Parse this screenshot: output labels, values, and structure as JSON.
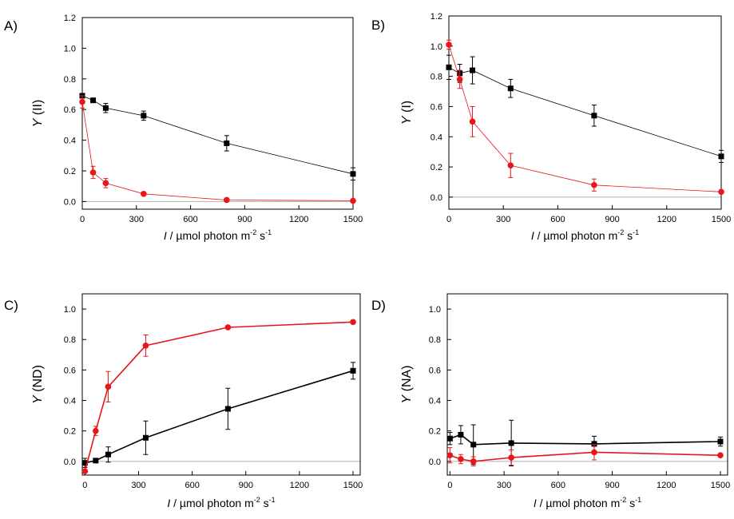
{
  "colors": {
    "black_series": "#000000",
    "red_series": "#e8161b",
    "baseline": "#b0b0b0"
  },
  "chart_data": [
    {
      "type": "line",
      "panel_label": "A)",
      "ylabel_italic": "Y",
      "ylabel_rest": " (II)",
      "xlabel_italic": "I",
      "xlabel_rest": " / µmol photon m",
      "xlabel_sup1": "-2",
      "xlabel_mid": " s",
      "xlabel_sup2": "-1",
      "xlim": [
        0,
        1500
      ],
      "ylim": [
        -0.05,
        1.2
      ],
      "xticks": [
        0,
        300,
        600,
        900,
        1200,
        1500
      ],
      "yticks": [
        0.0,
        0.2,
        0.4,
        0.6,
        0.8,
        1.0,
        1.2
      ],
      "baseline": 0,
      "series": [
        {
          "color": "#000000",
          "marker": "square",
          "line_width": 0.8,
          "x": [
            0,
            60,
            130,
            340,
            800,
            1500
          ],
          "y": [
            0.69,
            0.66,
            0.61,
            0.56,
            0.38,
            0.18
          ],
          "err": [
            0.01,
            0.01,
            0.03,
            0.03,
            0.05,
            0.04
          ]
        },
        {
          "color": "#e8161b",
          "marker": "circle",
          "line_width": 0.8,
          "x": [
            0,
            60,
            130,
            340,
            800,
            1500
          ],
          "y": [
            0.65,
            0.19,
            0.12,
            0.05,
            0.01,
            0.005
          ],
          "err": [
            0.04,
            0.04,
            0.03,
            0.01,
            0.005,
            0.005
          ]
        }
      ]
    },
    {
      "type": "line",
      "panel_label": "B)",
      "ylabel_italic": "Y",
      "ylabel_rest": " (I)",
      "xlabel_italic": "I",
      "xlabel_rest": " / µmol photon m",
      "xlabel_sup1": "-2",
      "xlabel_mid": " s",
      "xlabel_sup2": "-1",
      "xlim": [
        0,
        1500
      ],
      "ylim": [
        -0.08,
        1.2
      ],
      "xticks": [
        0,
        300,
        600,
        900,
        1200,
        1500
      ],
      "yticks": [
        0.0,
        0.2,
        0.4,
        0.6,
        0.8,
        1.0,
        1.2
      ],
      "baseline": 0,
      "series": [
        {
          "color": "#000000",
          "marker": "square",
          "line_width": 0.8,
          "x": [
            0,
            60,
            130,
            340,
            800,
            1500
          ],
          "y": [
            0.86,
            0.82,
            0.84,
            0.72,
            0.54,
            0.27
          ],
          "err": [
            0.08,
            0.06,
            0.09,
            0.06,
            0.07,
            0.04
          ]
        },
        {
          "color": "#e8161b",
          "marker": "circle",
          "line_width": 0.8,
          "x": [
            0,
            60,
            130,
            340,
            800,
            1500
          ],
          "y": [
            1.01,
            0.78,
            0.5,
            0.21,
            0.08,
            0.035
          ],
          "err": [
            0.03,
            0.06,
            0.1,
            0.08,
            0.04,
            0.01
          ]
        }
      ]
    },
    {
      "type": "line",
      "panel_label": "C)",
      "ylabel_italic": "Y",
      "ylabel_rest": " (ND)",
      "xlabel_italic": "I",
      "xlabel_rest": " / µmol photon m",
      "xlabel_sup1": "-2",
      "xlabel_mid": " s",
      "xlabel_sup2": "-1",
      "xlim": [
        -15,
        1540
      ],
      "ylim": [
        -0.09,
        1.1
      ],
      "xticks": [
        0,
        300,
        600,
        900,
        1200,
        1500
      ],
      "yticks": [
        0.0,
        0.2,
        0.4,
        0.6,
        0.8,
        1.0
      ],
      "baseline": 0,
      "series": [
        {
          "color": "#000000",
          "marker": "square",
          "line_width": 1.6,
          "x": [
            0,
            60,
            130,
            340,
            800,
            1500
          ],
          "y": [
            -0.01,
            0.005,
            0.045,
            0.155,
            0.345,
            0.595
          ],
          "err": [
            0.03,
            0.01,
            0.05,
            0.11,
            0.135,
            0.055
          ]
        },
        {
          "color": "#e8161b",
          "marker": "circle",
          "line_width": 1.6,
          "x": [
            0,
            60,
            130,
            340,
            800,
            1500
          ],
          "y": [
            -0.065,
            0.2,
            0.49,
            0.76,
            0.88,
            0.915
          ],
          "err": [
            0.01,
            0.03,
            0.1,
            0.07,
            0.01,
            0.01
          ]
        }
      ]
    },
    {
      "type": "line",
      "panel_label": "D)",
      "ylabel_italic": "Y",
      "ylabel_rest": " (NA)",
      "xlabel_italic": "I",
      "xlabel_rest": " / µmol photon m",
      "xlabel_sup1": "-2",
      "xlabel_mid": " s",
      "xlabel_sup2": "-1",
      "xlim": [
        -15,
        1540
      ],
      "ylim": [
        -0.09,
        1.1
      ],
      "xticks": [
        0,
        300,
        600,
        900,
        1200,
        1500
      ],
      "yticks": [
        0.0,
        0.2,
        0.4,
        0.6,
        0.8,
        1.0
      ],
      "baseline": 0,
      "series": [
        {
          "color": "#000000",
          "marker": "square",
          "line_width": 1.6,
          "x": [
            0,
            60,
            130,
            340,
            800,
            1500
          ],
          "y": [
            0.15,
            0.175,
            0.11,
            0.12,
            0.115,
            0.13
          ],
          "err": [
            0.04,
            0.06,
            0.13,
            0.15,
            0.05,
            0.03
          ]
        },
        {
          "color": "#e8161b",
          "marker": "circle",
          "line_width": 1.6,
          "x": [
            0,
            60,
            130,
            340,
            800,
            1500
          ],
          "y": [
            0.04,
            0.015,
            0.0,
            0.025,
            0.06,
            0.04
          ],
          "err": [
            0.05,
            0.03,
            0.03,
            0.05,
            0.05,
            0.01
          ]
        }
      ]
    }
  ]
}
